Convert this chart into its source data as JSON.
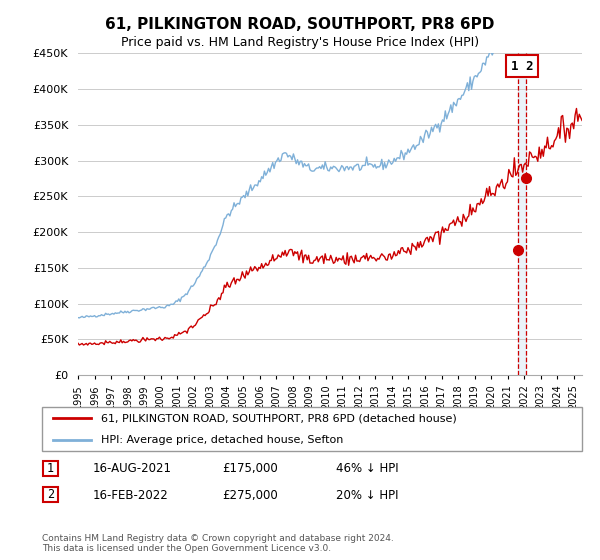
{
  "title": "61, PILKINGTON ROAD, SOUTHPORT, PR8 6PD",
  "subtitle": "Price paid vs. HM Land Registry's House Price Index (HPI)",
  "footer": "Contains HM Land Registry data © Crown copyright and database right 2024.\nThis data is licensed under the Open Government Licence v3.0.",
  "ylim": [
    0,
    450000
  ],
  "yticks": [
    0,
    50000,
    100000,
    150000,
    200000,
    250000,
    300000,
    350000,
    400000,
    450000
  ],
  "xlim_start": 1995.0,
  "xlim_end": 2025.5,
  "hpi_color": "#7fb0d8",
  "price_color": "#cc0000",
  "marker1_date": 2021.62,
  "marker1_price": 175000,
  "marker2_date": 2022.12,
  "marker2_price": 275000,
  "legend_line1": "61, PILKINGTON ROAD, SOUTHPORT, PR8 6PD (detached house)",
  "legend_line2": "HPI: Average price, detached house, Sefton",
  "table_row1": [
    "1",
    "16-AUG-2021",
    "£175,000",
    "46% ↓ HPI"
  ],
  "table_row2": [
    "2",
    "16-FEB-2022",
    "£275,000",
    "20% ↓ HPI"
  ],
  "background_color": "#ffffff"
}
